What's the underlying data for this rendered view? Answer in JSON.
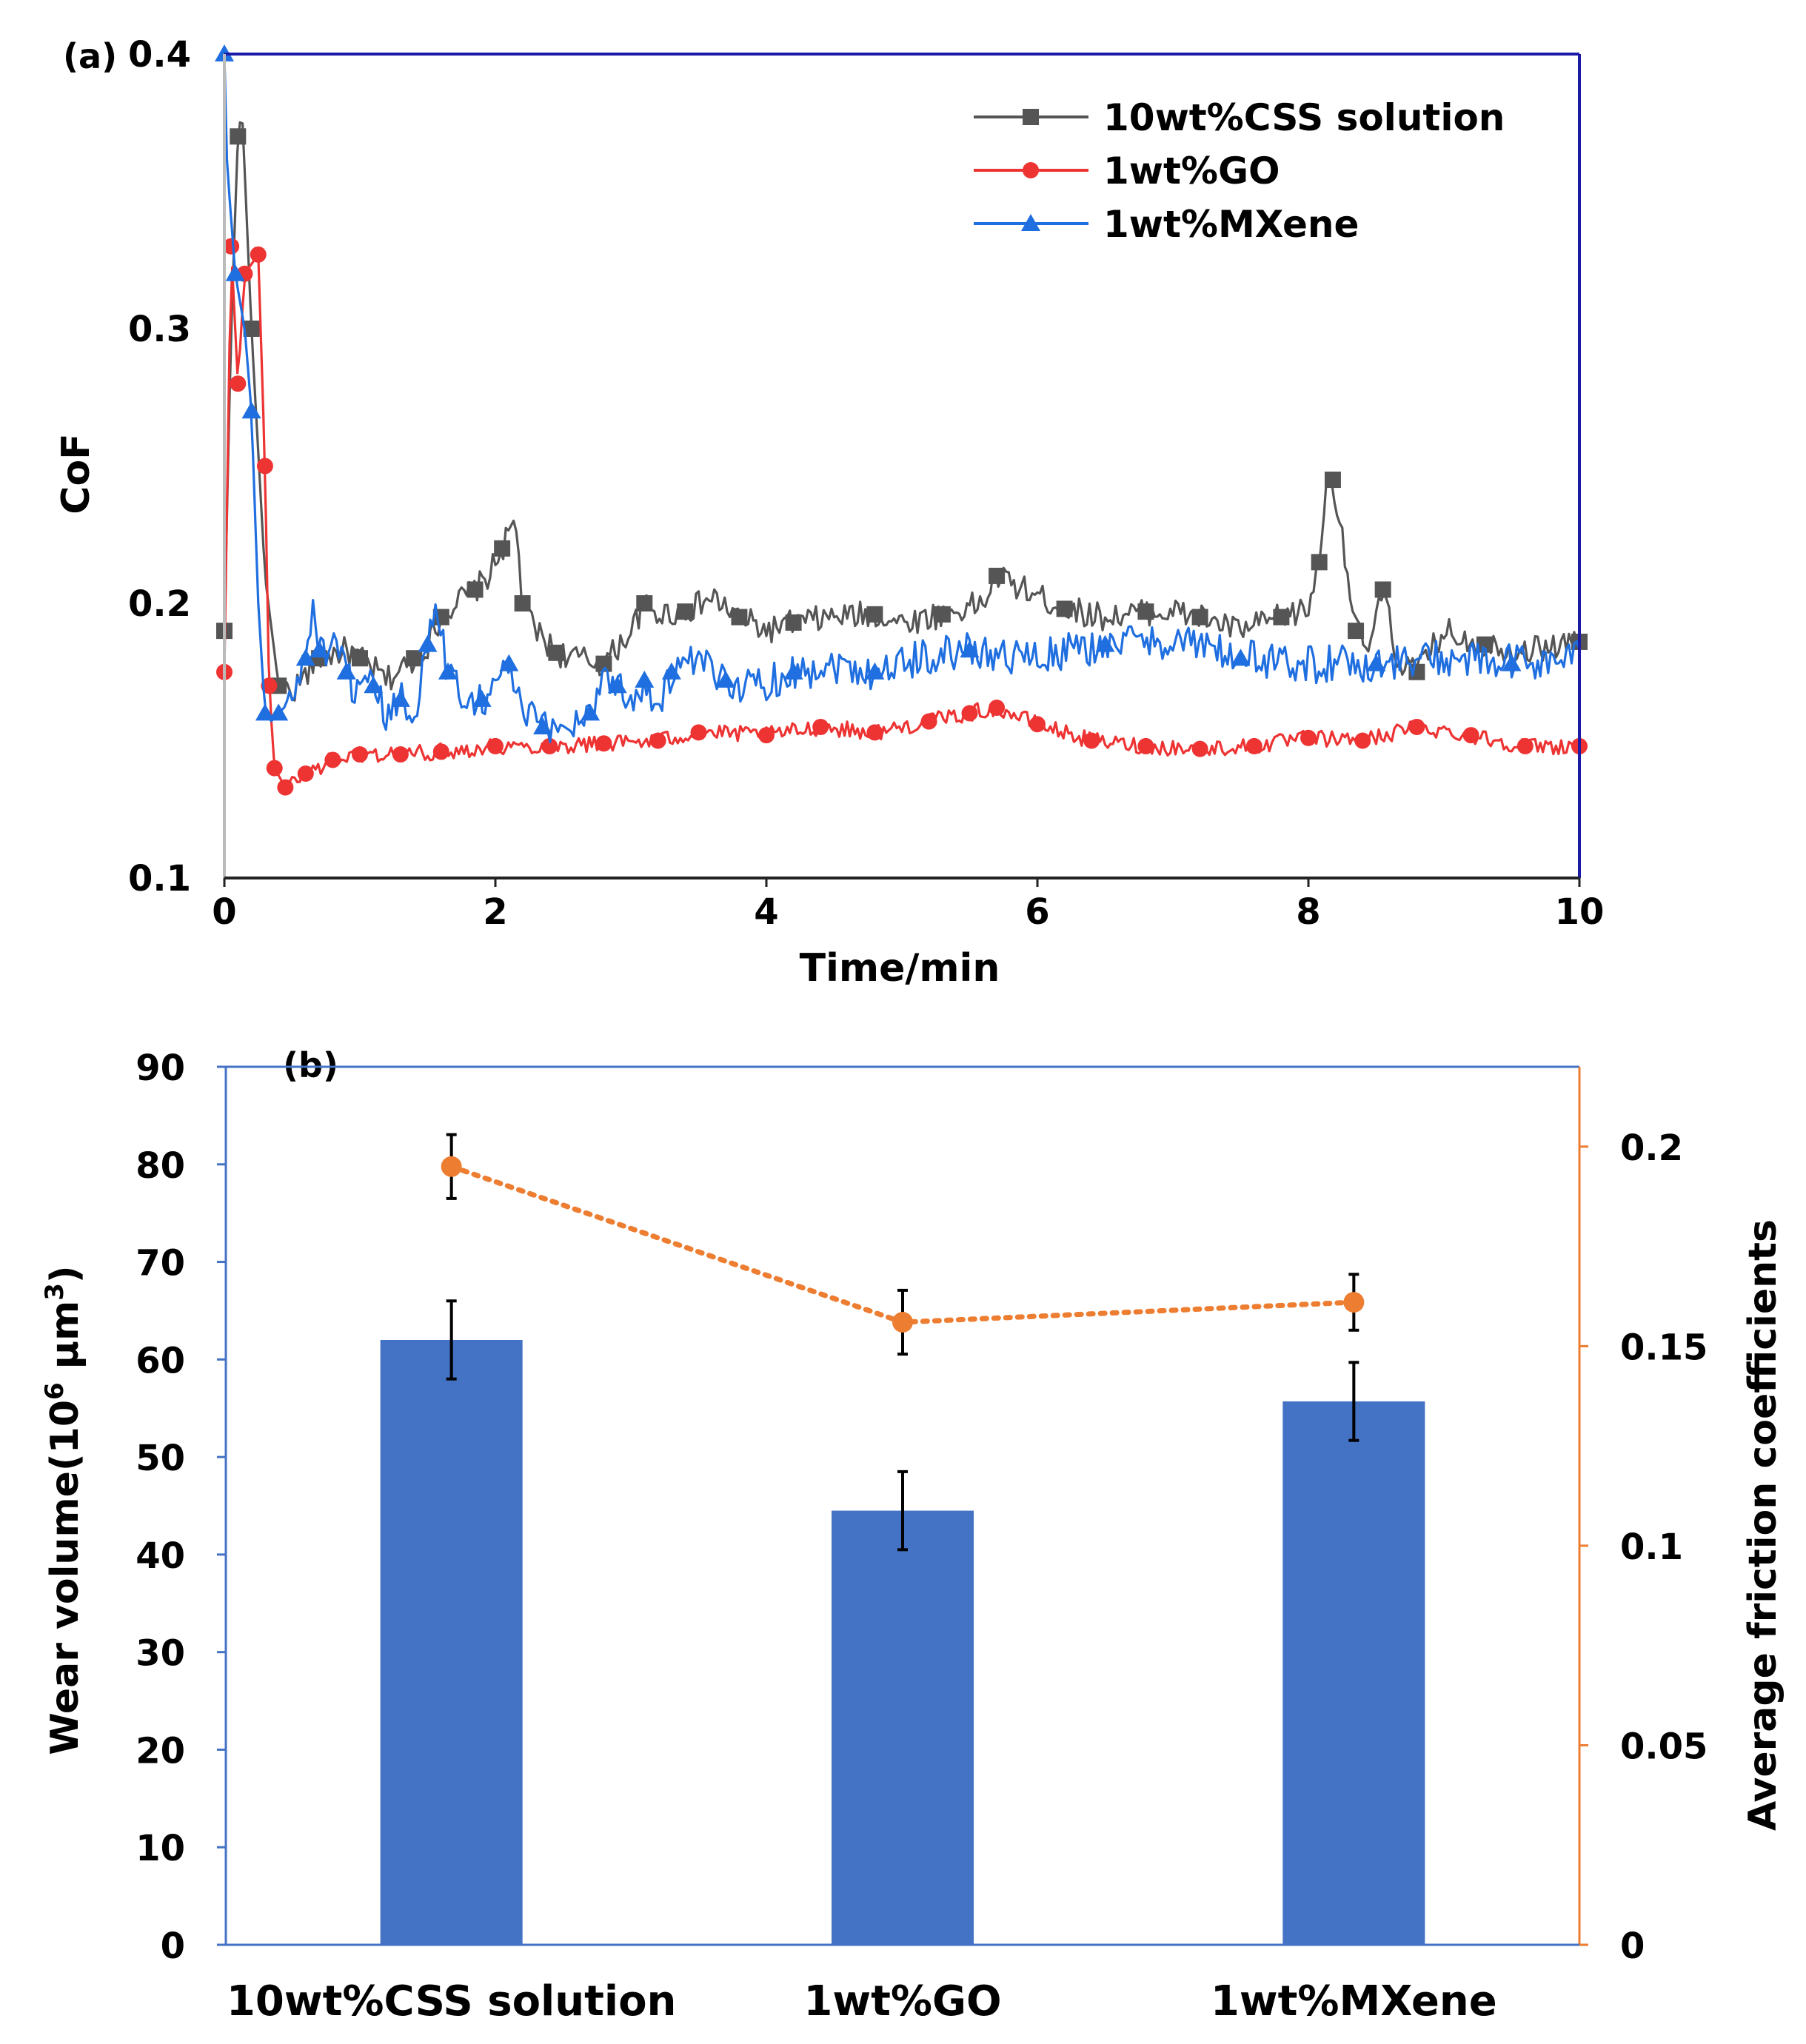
{
  "colors": {
    "css": "#555555",
    "go": "#ee3333",
    "mxene": "#1f6fe0",
    "bar": "#4472c4",
    "line_b": "#ed7d31",
    "frame_a": "#1a1aa6",
    "axis_a_left": "#bbbbbb",
    "axis_b": "#4472c4",
    "axis_b_right": "#ed7d31"
  },
  "chart_data": [
    {
      "panel": "(a)",
      "type": "line",
      "xlabel": "Time/min",
      "ylabel": "CoF",
      "xlim": [
        0,
        10
      ],
      "ylim": [
        0.1,
        0.4
      ],
      "xticks": [
        "0",
        "2",
        "4",
        "6",
        "8",
        "10"
      ],
      "yticks": [
        "0.1",
        "0.2",
        "0.3",
        "0.4"
      ],
      "legend_position": "top-right",
      "series": [
        {
          "name": "10wt%CSS solution",
          "marker": "square",
          "x": [
            0,
            0.05,
            0.1,
            0.13,
            0.2,
            0.3,
            0.4,
            0.5,
            0.7,
            0.9,
            1.0,
            1.2,
            1.4,
            1.5,
            1.6,
            1.7,
            1.85,
            1.95,
            2.05,
            2.15,
            2.2,
            2.3,
            2.45,
            2.6,
            2.8,
            3.0,
            3.1,
            3.2,
            3.4,
            3.6,
            3.8,
            4.0,
            4.2,
            4.5,
            4.8,
            5.0,
            5.3,
            5.6,
            5.7,
            5.9,
            6.2,
            6.5,
            6.8,
            7.0,
            7.2,
            7.5,
            7.8,
            8.0,
            8.08,
            8.12,
            8.18,
            8.25,
            8.35,
            8.45,
            8.55,
            8.65,
            8.8,
            9.0,
            9.3,
            9.6,
            10.0
          ],
          "y": [
            0.19,
            0.3,
            0.37,
            0.38,
            0.3,
            0.21,
            0.17,
            0.168,
            0.18,
            0.183,
            0.18,
            0.172,
            0.18,
            0.185,
            0.195,
            0.2,
            0.205,
            0.21,
            0.22,
            0.23,
            0.2,
            0.19,
            0.182,
            0.18,
            0.178,
            0.19,
            0.2,
            0.196,
            0.197,
            0.202,
            0.195,
            0.19,
            0.193,
            0.195,
            0.196,
            0.193,
            0.196,
            0.2,
            0.21,
            0.205,
            0.198,
            0.195,
            0.197,
            0.197,
            0.195,
            0.19,
            0.195,
            0.198,
            0.215,
            0.24,
            0.245,
            0.225,
            0.19,
            0.183,
            0.205,
            0.18,
            0.175,
            0.19,
            0.185,
            0.183,
            0.186
          ]
        },
        {
          "name": "1wt%GO",
          "marker": "circle",
          "x": [
            0,
            0.05,
            0.1,
            0.15,
            0.25,
            0.3,
            0.33,
            0.37,
            0.45,
            0.6,
            0.8,
            1.0,
            1.3,
            1.6,
            2.0,
            2.4,
            2.8,
            3.2,
            3.5,
            4.0,
            4.4,
            4.8,
            5.2,
            5.5,
            5.7,
            6.0,
            6.4,
            6.8,
            7.2,
            7.6,
            8.0,
            8.4,
            8.8,
            9.2,
            9.6,
            10.0
          ],
          "y": [
            0.175,
            0.33,
            0.28,
            0.32,
            0.327,
            0.25,
            0.17,
            0.14,
            0.133,
            0.138,
            0.143,
            0.145,
            0.145,
            0.146,
            0.148,
            0.148,
            0.149,
            0.15,
            0.153,
            0.152,
            0.155,
            0.153,
            0.157,
            0.16,
            0.162,
            0.156,
            0.15,
            0.148,
            0.147,
            0.148,
            0.151,
            0.15,
            0.155,
            0.152,
            0.148,
            0.148
          ]
        },
        {
          "name": "1wt%MXene",
          "marker": "triangle",
          "x": [
            0,
            0.02,
            0.08,
            0.15,
            0.2,
            0.25,
            0.3,
            0.35,
            0.4,
            0.5,
            0.6,
            0.65,
            0.7,
            0.8,
            0.9,
            1.0,
            1.1,
            1.2,
            1.3,
            1.4,
            1.5,
            1.55,
            1.65,
            1.75,
            1.9,
            2.0,
            2.1,
            2.2,
            2.35,
            2.5,
            2.7,
            2.8,
            2.9,
            3.0,
            3.1,
            3.2,
            3.3,
            3.5,
            3.7,
            3.9,
            4.2,
            4.5,
            4.8,
            5.1,
            5.5,
            6.0,
            6.5,
            7.0,
            7.5,
            8.0,
            8.5,
            9.0,
            9.5,
            10.0
          ],
          "y": [
            0.4,
            0.36,
            0.32,
            0.3,
            0.27,
            0.2,
            0.16,
            0.157,
            0.16,
            0.165,
            0.18,
            0.2,
            0.183,
            0.183,
            0.175,
            0.165,
            0.17,
            0.158,
            0.165,
            0.16,
            0.185,
            0.2,
            0.175,
            0.168,
            0.165,
            0.17,
            0.178,
            0.16,
            0.155,
            0.155,
            0.16,
            0.175,
            0.17,
            0.165,
            0.172,
            0.16,
            0.175,
            0.178,
            0.172,
            0.17,
            0.175,
            0.178,
            0.175,
            0.18,
            0.183,
            0.18,
            0.185,
            0.187,
            0.18,
            0.178,
            0.178,
            0.18,
            0.178,
            0.18
          ]
        }
      ]
    },
    {
      "panel": "(b)",
      "type": "bar",
      "categories": [
        "10wt%CSS solution",
        "1wt%GO",
        "1wt%MXene"
      ],
      "ylabel": "Wear volume(10⁶ μm³)",
      "ylabel_parts": {
        "pre": "Wear volume(10",
        "sup1": "6",
        "mid": " μm",
        "sup2": "3",
        "post": ")"
      },
      "y2label": "Average friction coefficients",
      "ylim": [
        0,
        90
      ],
      "y2lim": [
        0,
        0.22
      ],
      "yticks": [
        "0",
        "10",
        "20",
        "30",
        "40",
        "50",
        "60",
        "70",
        "80",
        "90"
      ],
      "y2ticks": [
        "0",
        "0.05",
        "0.1",
        "0.15",
        "0.2"
      ],
      "series": [
        {
          "name": "Wear volume",
          "axis": "left",
          "kind": "bar",
          "values": [
            62,
            44.5,
            55.7
          ],
          "errors": [
            4,
            4,
            4
          ]
        },
        {
          "name": "Average friction coefficients",
          "axis": "right",
          "kind": "line-dotted",
          "values": [
            0.195,
            0.156,
            0.161
          ],
          "errors": [
            0.008,
            0.008,
            0.007
          ]
        }
      ]
    }
  ]
}
